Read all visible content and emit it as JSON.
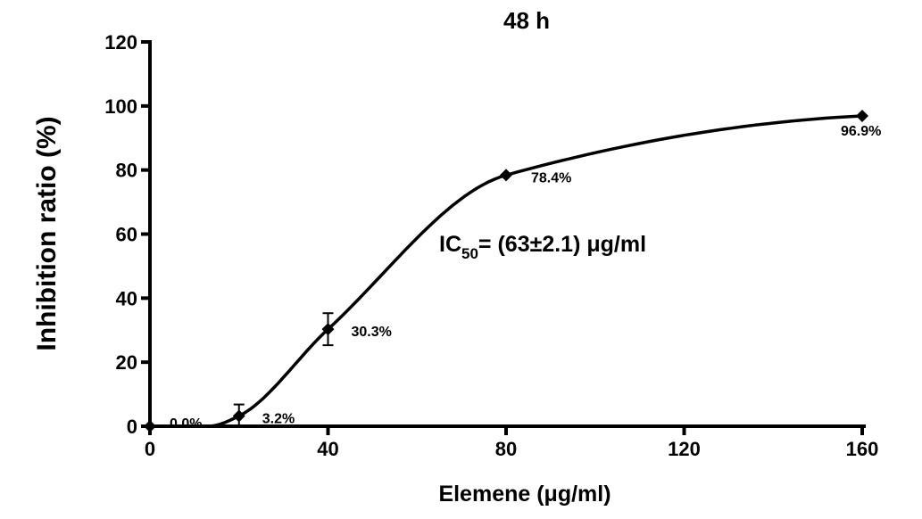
{
  "chart_data": {
    "type": "line",
    "title": "48 h",
    "xlabel": "Elemene (μg/ml)",
    "ylabel": "Inhibition ratio (%)",
    "xlim": [
      0,
      160
    ],
    "ylim": [
      0,
      120
    ],
    "xticks": [
      0,
      40,
      80,
      120,
      160
    ],
    "yticks": [
      0,
      20,
      40,
      60,
      80,
      100,
      120
    ],
    "grid": false,
    "marker": "diamond",
    "color": "#000000",
    "points": [
      {
        "x": 0,
        "y": 0.0,
        "err": 0,
        "label": "0.0%"
      },
      {
        "x": 20,
        "y": 3.2,
        "err": 3.6,
        "label": "3.2%"
      },
      {
        "x": 40,
        "y": 30.3,
        "err": 5.0,
        "label": "30.3%"
      },
      {
        "x": 80,
        "y": 78.4,
        "err": 0,
        "label": "78.4%"
      },
      {
        "x": 160,
        "y": 96.9,
        "err": 0,
        "label": "96.9%"
      }
    ],
    "annotation": {
      "prefix": "IC",
      "sub": "50",
      "text": "= (63±2.1) μg/ml"
    }
  }
}
